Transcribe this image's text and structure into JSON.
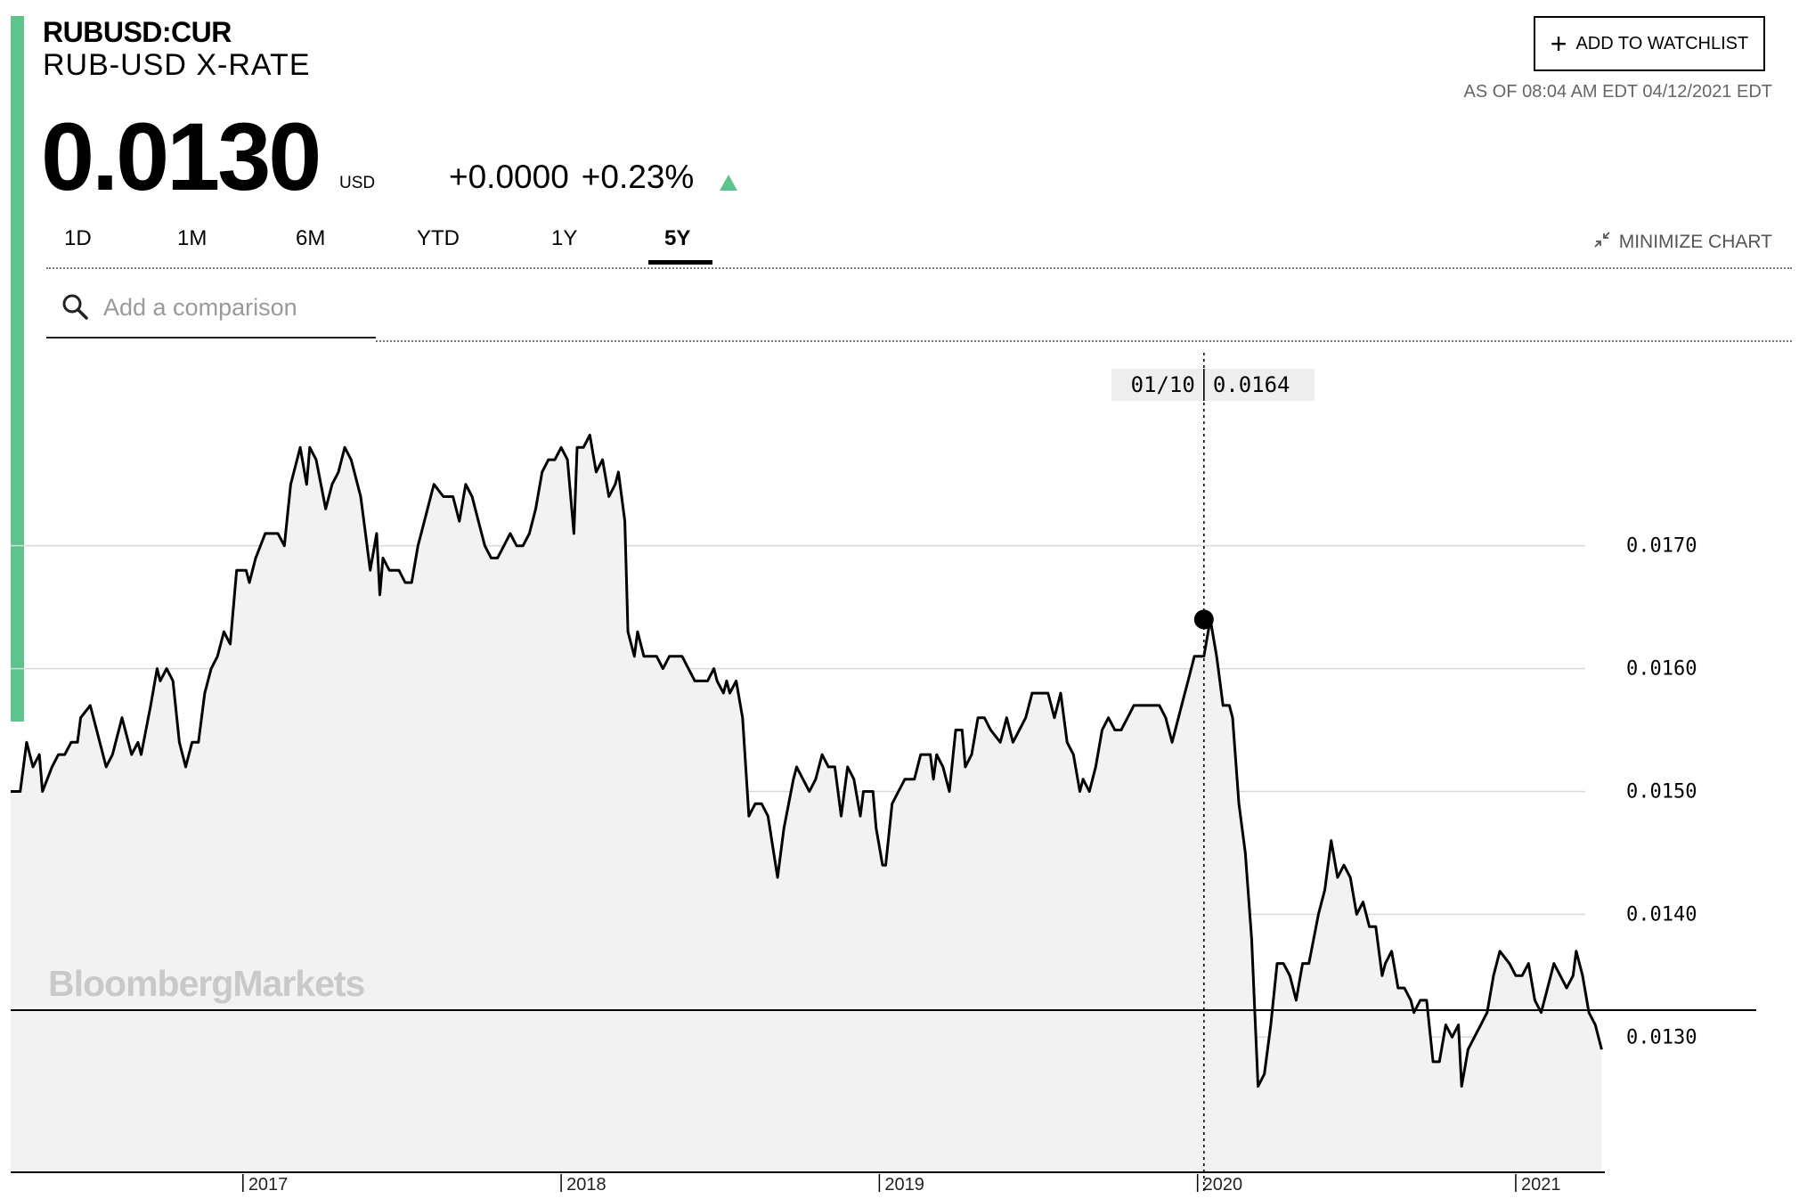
{
  "header": {
    "ticker": "RUBUSD:CUR",
    "name": "RUB-USD X-RATE",
    "price": "0.0130",
    "currency": "USD",
    "change_abs": "+0.0000",
    "change_pct": "+0.23%",
    "watchlist_label": "ADD TO WATCHLIST",
    "as_of": "AS OF 08:04 AM EDT 04/12/2021 EDT"
  },
  "tabs": [
    {
      "label": "1D",
      "active": false
    },
    {
      "label": "1M",
      "active": false
    },
    {
      "label": "6M",
      "active": false
    },
    {
      "label": "YTD",
      "active": false
    },
    {
      "label": "1Y",
      "active": false
    },
    {
      "label": "5Y",
      "active": true
    }
  ],
  "minimize_label": "MINIMIZE CHART",
  "search": {
    "placeholder": "Add a comparison"
  },
  "watermark": "BloombergMarkets",
  "colors": {
    "accent": "#5ec48e",
    "line": "#000000",
    "area": "#f2f2f2",
    "grid": "#d9d9d9"
  },
  "chart_data": {
    "type": "area",
    "x_axis": {
      "labels": [
        "2017",
        "2018",
        "2019",
        "2020",
        "2021"
      ],
      "start": 2016.27,
      "end": 2021.28
    },
    "y_axis": {
      "ticks": [
        0.013,
        0.014,
        0.015,
        0.016,
        0.017
      ],
      "tick_labels": [
        "0.0130",
        "0.0140",
        "0.0150",
        "0.0160",
        "0.0170"
      ],
      "range": [
        0.0119,
        0.0186
      ]
    },
    "crosshair": {
      "x": 2020.02,
      "date_label": "01/10",
      "value_label": "0.0164",
      "value": 0.0164
    },
    "series": [
      {
        "points": [
          [
            2016.27,
            0.015
          ],
          [
            2016.3,
            0.015
          ],
          [
            2016.32,
            0.0154
          ],
          [
            2016.34,
            0.0152
          ],
          [
            2016.36,
            0.0153
          ],
          [
            2016.37,
            0.015
          ],
          [
            2016.4,
            0.0152
          ],
          [
            2016.42,
            0.0153
          ],
          [
            2016.44,
            0.0153
          ],
          [
            2016.46,
            0.0154
          ],
          [
            2016.48,
            0.0154
          ],
          [
            2016.49,
            0.0156
          ],
          [
            2016.52,
            0.0157
          ],
          [
            2016.54,
            0.0155
          ],
          [
            2016.57,
            0.0152
          ],
          [
            2016.59,
            0.0153
          ],
          [
            2016.62,
            0.0156
          ],
          [
            2016.65,
            0.0153
          ],
          [
            2016.67,
            0.0154
          ],
          [
            2016.68,
            0.0153
          ],
          [
            2016.71,
            0.0157
          ],
          [
            2016.73,
            0.016
          ],
          [
            2016.74,
            0.0159
          ],
          [
            2016.76,
            0.016
          ],
          [
            2016.78,
            0.0159
          ],
          [
            2016.8,
            0.0154
          ],
          [
            2016.82,
            0.0152
          ],
          [
            2016.84,
            0.0154
          ],
          [
            2016.86,
            0.0154
          ],
          [
            2016.88,
            0.0158
          ],
          [
            2016.9,
            0.016
          ],
          [
            2016.92,
            0.0161
          ],
          [
            2016.94,
            0.0163
          ],
          [
            2016.96,
            0.0162
          ],
          [
            2016.98,
            0.0168
          ],
          [
            2017.01,
            0.0168
          ],
          [
            2017.02,
            0.0167
          ],
          [
            2017.04,
            0.0169
          ],
          [
            2017.07,
            0.0171
          ],
          [
            2017.09,
            0.0171
          ],
          [
            2017.11,
            0.0171
          ],
          [
            2017.13,
            0.017
          ],
          [
            2017.15,
            0.0175
          ],
          [
            2017.16,
            0.0176
          ],
          [
            2017.18,
            0.0178
          ],
          [
            2017.2,
            0.0175
          ],
          [
            2017.21,
            0.0178
          ],
          [
            2017.23,
            0.0177
          ],
          [
            2017.26,
            0.0173
          ],
          [
            2017.28,
            0.0175
          ],
          [
            2017.3,
            0.0176
          ],
          [
            2017.32,
            0.0178
          ],
          [
            2017.34,
            0.0177
          ],
          [
            2017.37,
            0.0174
          ],
          [
            2017.38,
            0.0172
          ],
          [
            2017.4,
            0.0168
          ],
          [
            2017.42,
            0.0171
          ],
          [
            2017.43,
            0.0166
          ],
          [
            2017.44,
            0.0169
          ],
          [
            2017.46,
            0.0168
          ],
          [
            2017.49,
            0.0168
          ],
          [
            2017.51,
            0.0167
          ],
          [
            2017.53,
            0.0167
          ],
          [
            2017.55,
            0.017
          ],
          [
            2017.57,
            0.0172
          ],
          [
            2017.59,
            0.0174
          ],
          [
            2017.6,
            0.0175
          ],
          [
            2017.63,
            0.0174
          ],
          [
            2017.66,
            0.0174
          ],
          [
            2017.68,
            0.0172
          ],
          [
            2017.7,
            0.0175
          ],
          [
            2017.72,
            0.0174
          ],
          [
            2017.74,
            0.0172
          ],
          [
            2017.76,
            0.017
          ],
          [
            2017.78,
            0.0169
          ],
          [
            2017.8,
            0.0169
          ],
          [
            2017.82,
            0.017
          ],
          [
            2017.84,
            0.0171
          ],
          [
            2017.86,
            0.017
          ],
          [
            2017.88,
            0.017
          ],
          [
            2017.9,
            0.0171
          ],
          [
            2017.92,
            0.0173
          ],
          [
            2017.94,
            0.0176
          ],
          [
            2017.96,
            0.0177
          ],
          [
            2017.98,
            0.0177
          ],
          [
            2018.0,
            0.0178
          ],
          [
            2018.02,
            0.0177
          ],
          [
            2018.04,
            0.0171
          ],
          [
            2018.05,
            0.0178
          ],
          [
            2018.07,
            0.0178
          ],
          [
            2018.09,
            0.0179
          ],
          [
            2018.11,
            0.0176
          ],
          [
            2018.13,
            0.0177
          ],
          [
            2018.15,
            0.0174
          ],
          [
            2018.17,
            0.0175
          ],
          [
            2018.18,
            0.0176
          ],
          [
            2018.19,
            0.0174
          ],
          [
            2018.2,
            0.0172
          ],
          [
            2018.21,
            0.0163
          ],
          [
            2018.23,
            0.0161
          ],
          [
            2018.24,
            0.0163
          ],
          [
            2018.26,
            0.0161
          ],
          [
            2018.28,
            0.0161
          ],
          [
            2018.3,
            0.0161
          ],
          [
            2018.32,
            0.016
          ],
          [
            2018.34,
            0.0161
          ],
          [
            2018.38,
            0.0161
          ],
          [
            2018.4,
            0.016
          ],
          [
            2018.42,
            0.0159
          ],
          [
            2018.44,
            0.0159
          ],
          [
            2018.46,
            0.0159
          ],
          [
            2018.48,
            0.016
          ],
          [
            2018.49,
            0.0159
          ],
          [
            2018.51,
            0.0158
          ],
          [
            2018.52,
            0.0159
          ],
          [
            2018.53,
            0.0158
          ],
          [
            2018.55,
            0.0159
          ],
          [
            2018.57,
            0.0156
          ],
          [
            2018.59,
            0.0148
          ],
          [
            2018.61,
            0.0149
          ],
          [
            2018.63,
            0.0149
          ],
          [
            2018.65,
            0.0148
          ],
          [
            2018.68,
            0.0143
          ],
          [
            2018.7,
            0.0147
          ],
          [
            2018.73,
            0.0151
          ],
          [
            2018.74,
            0.0152
          ],
          [
            2018.78,
            0.015
          ],
          [
            2018.8,
            0.0151
          ],
          [
            2018.82,
            0.0153
          ],
          [
            2018.84,
            0.0152
          ],
          [
            2018.86,
            0.0152
          ],
          [
            2018.88,
            0.0148
          ],
          [
            2018.9,
            0.0152
          ],
          [
            2018.92,
            0.0151
          ],
          [
            2018.94,
            0.0148
          ],
          [
            2018.95,
            0.015
          ],
          [
            2018.98,
            0.015
          ],
          [
            2018.99,
            0.0147
          ],
          [
            2019.01,
            0.0144
          ],
          [
            2019.02,
            0.0144
          ],
          [
            2019.04,
            0.0149
          ],
          [
            2019.06,
            0.015
          ],
          [
            2019.08,
            0.0151
          ],
          [
            2019.11,
            0.0151
          ],
          [
            2019.13,
            0.0153
          ],
          [
            2019.16,
            0.0153
          ],
          [
            2019.17,
            0.0151
          ],
          [
            2019.18,
            0.0153
          ],
          [
            2019.2,
            0.0152
          ],
          [
            2019.22,
            0.015
          ],
          [
            2019.24,
            0.0155
          ],
          [
            2019.26,
            0.0155
          ],
          [
            2019.27,
            0.0152
          ],
          [
            2019.29,
            0.0153
          ],
          [
            2019.31,
            0.0156
          ],
          [
            2019.33,
            0.0156
          ],
          [
            2019.35,
            0.0155
          ],
          [
            2019.38,
            0.0154
          ],
          [
            2019.4,
            0.0156
          ],
          [
            2019.42,
            0.0154
          ],
          [
            2019.44,
            0.0155
          ],
          [
            2019.46,
            0.0156
          ],
          [
            2019.48,
            0.0158
          ],
          [
            2019.5,
            0.0158
          ],
          [
            2019.53,
            0.0158
          ],
          [
            2019.55,
            0.0156
          ],
          [
            2019.57,
            0.0158
          ],
          [
            2019.59,
            0.0154
          ],
          [
            2019.61,
            0.0153
          ],
          [
            2019.63,
            0.015
          ],
          [
            2019.64,
            0.0151
          ],
          [
            2019.66,
            0.015
          ],
          [
            2019.68,
            0.0152
          ],
          [
            2019.7,
            0.0155
          ],
          [
            2019.72,
            0.0156
          ],
          [
            2019.74,
            0.0155
          ],
          [
            2019.76,
            0.0155
          ],
          [
            2019.78,
            0.0156
          ],
          [
            2019.8,
            0.0157
          ],
          [
            2019.82,
            0.0157
          ],
          [
            2019.84,
            0.0157
          ],
          [
            2019.86,
            0.0157
          ],
          [
            2019.88,
            0.0157
          ],
          [
            2019.9,
            0.0156
          ],
          [
            2019.92,
            0.0154
          ],
          [
            2019.95,
            0.0157
          ],
          [
            2019.97,
            0.0159
          ],
          [
            2019.99,
            0.0161
          ],
          [
            2020.0,
            0.0161
          ],
          [
            2020.02,
            0.0161
          ],
          [
            2020.04,
            0.0164
          ],
          [
            2020.06,
            0.0161
          ],
          [
            2020.08,
            0.0157
          ],
          [
            2020.1,
            0.0157
          ],
          [
            2020.11,
            0.0156
          ],
          [
            2020.13,
            0.0149
          ],
          [
            2020.15,
            0.0145
          ],
          [
            2020.17,
            0.0138
          ],
          [
            2020.19,
            0.0126
          ],
          [
            2020.21,
            0.0127
          ],
          [
            2020.23,
            0.0131
          ],
          [
            2020.25,
            0.0136
          ],
          [
            2020.27,
            0.0136
          ],
          [
            2020.29,
            0.0135
          ],
          [
            2020.31,
            0.0133
          ],
          [
            2020.33,
            0.0136
          ],
          [
            2020.35,
            0.0136
          ],
          [
            2020.38,
            0.014
          ],
          [
            2020.4,
            0.0142
          ],
          [
            2020.42,
            0.0146
          ],
          [
            2020.44,
            0.0143
          ],
          [
            2020.46,
            0.0144
          ],
          [
            2020.48,
            0.0143
          ],
          [
            2020.5,
            0.014
          ],
          [
            2020.52,
            0.0141
          ],
          [
            2020.54,
            0.0139
          ],
          [
            2020.56,
            0.0139
          ],
          [
            2020.58,
            0.0135
          ],
          [
            2020.59,
            0.0136
          ],
          [
            2020.61,
            0.0137
          ],
          [
            2020.63,
            0.0134
          ],
          [
            2020.65,
            0.0134
          ],
          [
            2020.67,
            0.0133
          ],
          [
            2020.68,
            0.0132
          ],
          [
            2020.7,
            0.0133
          ],
          [
            2020.72,
            0.0133
          ],
          [
            2020.74,
            0.0128
          ],
          [
            2020.76,
            0.0128
          ],
          [
            2020.78,
            0.0131
          ],
          [
            2020.8,
            0.013
          ],
          [
            2020.82,
            0.0131
          ],
          [
            2020.83,
            0.0126
          ],
          [
            2020.85,
            0.0129
          ],
          [
            2020.87,
            0.013
          ],
          [
            2020.89,
            0.0131
          ],
          [
            2020.91,
            0.0132
          ],
          [
            2020.93,
            0.0135
          ],
          [
            2020.95,
            0.0137
          ],
          [
            2020.98,
            0.0136
          ],
          [
            2021.0,
            0.0135
          ],
          [
            2021.02,
            0.0135
          ],
          [
            2021.04,
            0.0136
          ],
          [
            2021.06,
            0.0133
          ],
          [
            2021.08,
            0.0132
          ],
          [
            2021.1,
            0.0134
          ],
          [
            2021.12,
            0.0136
          ],
          [
            2021.14,
            0.0135
          ],
          [
            2021.16,
            0.0134
          ],
          [
            2021.18,
            0.0135
          ],
          [
            2021.19,
            0.0137
          ],
          [
            2021.21,
            0.0135
          ],
          [
            2021.23,
            0.0132
          ],
          [
            2021.25,
            0.0131
          ],
          [
            2021.27,
            0.0129
          ]
        ]
      }
    ]
  }
}
